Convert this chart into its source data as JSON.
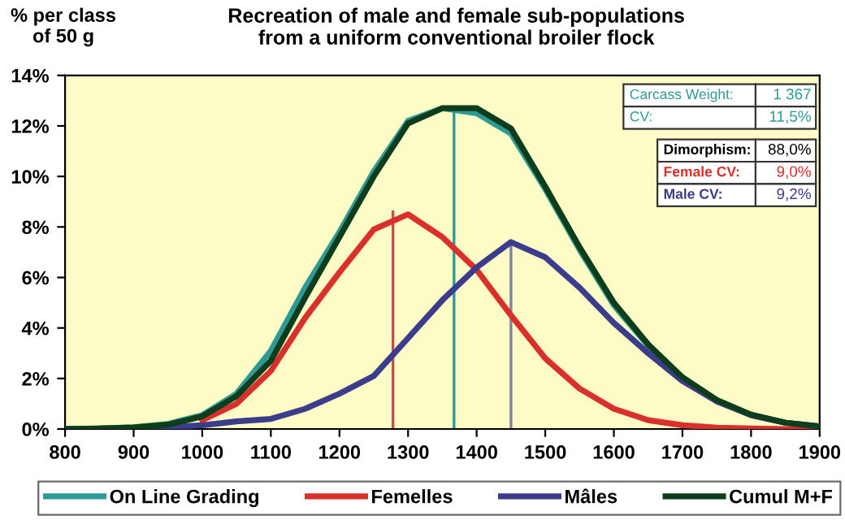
{
  "chart_data": {
    "type": "line",
    "title": "Recreation of male and female sub-populations\nfrom a uniform conventional broiler flock",
    "ylabel": "% per class\nof 50 g",
    "x": [
      800,
      850,
      900,
      950,
      1000,
      1050,
      1100,
      1150,
      1200,
      1250,
      1300,
      1350,
      1400,
      1450,
      1500,
      1550,
      1600,
      1650,
      1700,
      1750,
      1800,
      1850,
      1900
    ],
    "series": [
      {
        "name": "On Line Grading",
        "color": "#2e9a96",
        "values": [
          0,
          0.02,
          0.07,
          0.2,
          0.55,
          1.4,
          3.1,
          5.6,
          7.8,
          10.2,
          12.2,
          12.7,
          12.5,
          11.7,
          9.5,
          7.1,
          4.9,
          3.3,
          2.0,
          1.1,
          0.55,
          0.25,
          0.1
        ]
      },
      {
        "name": "Femelles",
        "color": "#d9302c",
        "values": [
          null,
          null,
          null,
          null,
          0.35,
          1.0,
          2.3,
          4.4,
          6.2,
          7.9,
          8.5,
          7.6,
          6.3,
          4.5,
          2.8,
          1.6,
          0.8,
          0.35,
          0.15,
          0.05,
          0.02,
          0,
          0
        ]
      },
      {
        "name": "Mâles",
        "color": "#3c3c8c",
        "values": [
          0,
          0.01,
          0.03,
          0.07,
          0.15,
          0.3,
          0.4,
          0.8,
          1.4,
          2.1,
          3.6,
          5.1,
          6.4,
          7.4,
          6.8,
          5.6,
          4.2,
          3.0,
          1.9,
          1.1,
          0.55,
          0.25,
          0.1
        ]
      },
      {
        "name": "Cumul M+F",
        "color": "#0d3d1a",
        "values": [
          0,
          0.02,
          0.06,
          0.17,
          0.5,
          1.3,
          2.7,
          5.2,
          7.6,
          10.0,
          12.1,
          12.7,
          12.7,
          11.9,
          9.6,
          7.2,
          5.0,
          3.35,
          2.05,
          1.15,
          0.57,
          0.25,
          0.1
        ]
      },
      {
        "color": "#2e9a96",
        "x": [
          1367,
          1367
        ],
        "values": [
          0,
          12.7
        ]
      },
      {
        "color": "#c0504d",
        "x": [
          1278,
          1278
        ],
        "values": [
          0,
          8.6
        ]
      },
      {
        "color": "#8080a0",
        "x": [
          1450,
          1450
        ],
        "values": [
          0,
          7.4
        ]
      }
    ],
    "xlim": [
      800,
      1900
    ],
    "xticks": [
      800,
      900,
      1000,
      1100,
      1200,
      1300,
      1400,
      1500,
      1600,
      1700,
      1800,
      1900
    ],
    "ylim": [
      0,
      14
    ],
    "yticks": [
      {
        "value": 0,
        "label": "0%"
      },
      {
        "value": 2,
        "label": "2%"
      },
      {
        "value": 4,
        "label": "4%"
      },
      {
        "value": 6,
        "label": "6%"
      },
      {
        "value": 8,
        "label": "8%"
      },
      {
        "value": 10,
        "label": "10%"
      },
      {
        "value": 12,
        "label": "12%"
      },
      {
        "value": 14,
        "label": "14%"
      }
    ],
    "annotations": [
      "Carcass Weight:",
      "1 367",
      "CV:",
      "11,5%",
      "Dimorphism:",
      "88,0%",
      "Female CV:",
      "9,0%",
      "Male CV:",
      "9,2%"
    ],
    "legend": "bottom",
    "grid": false,
    "marker": "none",
    "line_style": "solid"
  }
}
